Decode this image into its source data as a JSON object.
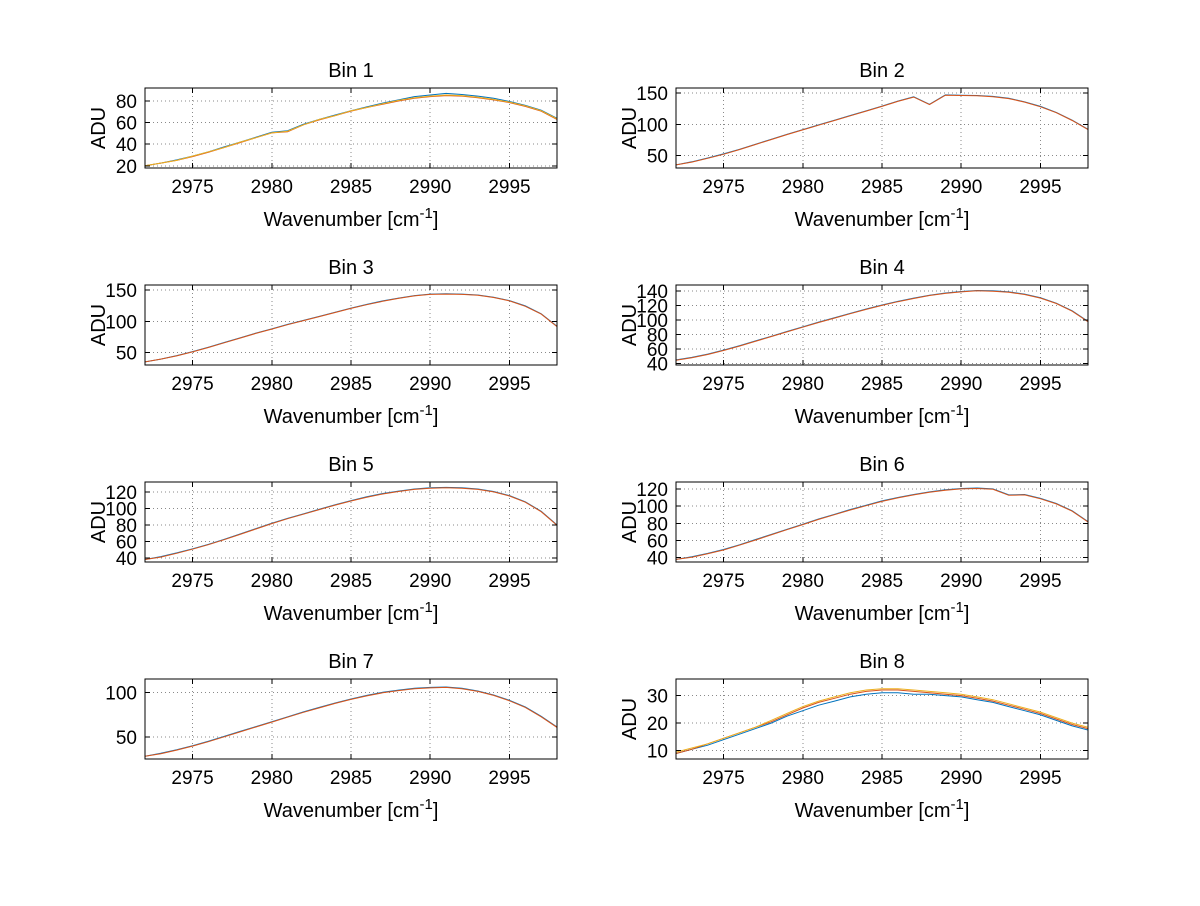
{
  "figure": {
    "background": "#ffffff"
  },
  "chart_data": [
    {
      "type": "line",
      "title": "Bin 1",
      "xlabel": "Wavenumber [cm^{-1}]",
      "ylabel": "ADU",
      "xlim": [
        2972,
        2998
      ],
      "xticks": [
        2975,
        2980,
        2985,
        2990,
        2995
      ],
      "ylim": [
        18,
        92
      ],
      "yticks": [
        20,
        40,
        60,
        80
      ],
      "grid": true,
      "legend": "none",
      "x": [
        2972,
        2973,
        2974,
        2975,
        2976,
        2977,
        2978,
        2979,
        2980,
        2981,
        2982,
        2983,
        2984,
        2985,
        2986,
        2987,
        2988,
        2989,
        2990,
        2991,
        2992,
        2993,
        2994,
        2995,
        2996,
        2997,
        2998
      ],
      "series": [
        {
          "name": "blue",
          "color": "#0072BD",
          "y": [
            20,
            22.5,
            25.5,
            29,
            33,
            37.5,
            42,
            46.5,
            51,
            52.5,
            58.5,
            63,
            67,
            71,
            74.5,
            78,
            81,
            84,
            85.5,
            87,
            86,
            84.5,
            82.5,
            79.5,
            76,
            71.5,
            64
          ]
        },
        {
          "name": "orange",
          "color": "#D95319",
          "y": [
            20,
            22.5,
            25,
            28.5,
            32.5,
            37,
            41.5,
            46,
            50.5,
            51.5,
            58,
            62.5,
            66.5,
            70.5,
            74,
            77,
            80,
            82.5,
            84,
            85,
            84.5,
            83,
            81,
            78.5,
            75,
            70.5,
            63
          ]
        },
        {
          "name": "yellow",
          "color": "#EDB120",
          "y": [
            20,
            22.5,
            25,
            29,
            33,
            37,
            42,
            46,
            50.5,
            52,
            58,
            63,
            66.5,
            71,
            74,
            77.5,
            80.5,
            83,
            84.5,
            85.5,
            85,
            83.5,
            81.5,
            79,
            75.5,
            71,
            63.5
          ]
        }
      ]
    },
    {
      "type": "line",
      "title": "Bin 2",
      "xlabel": "Wavenumber [cm^{-1}]",
      "ylabel": "ADU",
      "xlim": [
        2972,
        2998
      ],
      "xticks": [
        2975,
        2980,
        2985,
        2990,
        2995
      ],
      "ylim": [
        30,
        158
      ],
      "yticks": [
        50,
        100,
        150
      ],
      "grid": true,
      "legend": "none",
      "x": [
        2972,
        2973,
        2974,
        2975,
        2976,
        2977,
        2978,
        2979,
        2980,
        2981,
        2982,
        2983,
        2984,
        2985,
        2986,
        2987,
        2988,
        2989,
        2990,
        2991,
        2992,
        2993,
        2994,
        2995,
        2996,
        2997,
        2998
      ],
      "series": [
        {
          "name": "blue",
          "color": "#0072BD",
          "y": [
            35,
            40,
            46,
            52.5,
            60,
            68,
            76,
            84,
            91.5,
            99,
            106.5,
            114,
            121.5,
            129,
            137,
            144,
            132,
            147,
            146.5,
            146,
            144.5,
            141.5,
            136,
            128.5,
            119,
            106.5,
            92
          ]
        },
        {
          "name": "orange",
          "color": "#D95319",
          "y": [
            35,
            39.5,
            45.5,
            52,
            59.5,
            67.5,
            75.5,
            83.5,
            91,
            98.5,
            106,
            113.5,
            121,
            128.5,
            136.5,
            143.5,
            131.5,
            146.5,
            146,
            145.5,
            144,
            141,
            135.5,
            128,
            118.5,
            106,
            91.5
          ]
        }
      ]
    },
    {
      "type": "line",
      "title": "Bin 3",
      "xlabel": "Wavenumber [cm^{-1}]",
      "ylabel": "ADU",
      "xlim": [
        2972,
        2998
      ],
      "xticks": [
        2975,
        2980,
        2985,
        2990,
        2995
      ],
      "ylim": [
        30,
        158
      ],
      "yticks": [
        50,
        100,
        150
      ],
      "grid": true,
      "legend": "none",
      "x": [
        2972,
        2973,
        2974,
        2975,
        2976,
        2977,
        2978,
        2979,
        2980,
        2981,
        2982,
        2983,
        2984,
        2985,
        2986,
        2987,
        2988,
        2989,
        2990,
        2991,
        2992,
        2993,
        2994,
        2995,
        2996,
        2997,
        2998
      ],
      "series": [
        {
          "name": "blue",
          "color": "#0072BD",
          "y": [
            35,
            39.5,
            45,
            51.5,
            58.5,
            66,
            73.5,
            81,
            88,
            95,
            101.5,
            108,
            114.5,
            121,
            127,
            132.5,
            137,
            141,
            143.5,
            144,
            143.5,
            142,
            138.5,
            133,
            124.5,
            112,
            92
          ]
        },
        {
          "name": "orange",
          "color": "#D95319",
          "y": [
            35,
            39.5,
            44.5,
            51,
            58,
            65.5,
            73,
            80.5,
            87.5,
            94.5,
            101,
            107.5,
            114,
            120.5,
            126.5,
            132,
            136.5,
            140.5,
            143,
            143.5,
            143,
            141.5,
            138,
            132.5,
            124,
            111.5,
            91.5
          ]
        }
      ]
    },
    {
      "type": "line",
      "title": "Bin 4",
      "xlabel": "Wavenumber [cm^{-1}]",
      "ylabel": "ADU",
      "xlim": [
        2972,
        2998
      ],
      "xticks": [
        2975,
        2980,
        2985,
        2990,
        2995
      ],
      "ylim": [
        38,
        148
      ],
      "yticks": [
        40,
        60,
        80,
        100,
        120,
        140
      ],
      "grid": true,
      "legend": "none",
      "x": [
        2972,
        2973,
        2974,
        2975,
        2976,
        2977,
        2978,
        2979,
        2980,
        2981,
        2982,
        2983,
        2984,
        2985,
        2986,
        2987,
        2988,
        2989,
        2990,
        2991,
        2992,
        2993,
        2994,
        2995,
        2996,
        2997,
        2998
      ],
      "series": [
        {
          "name": "blue",
          "color": "#0072BD",
          "y": [
            45,
            48.5,
            53,
            58.5,
            64.5,
            71,
            77.5,
            84,
            90.5,
            97,
            103,
            109,
            115,
            120.5,
            125.5,
            130,
            134,
            137,
            139,
            140.5,
            140,
            138.5,
            135.5,
            130.5,
            123,
            112.5,
            98
          ]
        },
        {
          "name": "orange",
          "color": "#D95319",
          "y": [
            44.5,
            48,
            52.5,
            58,
            64,
            70.5,
            77,
            83.5,
            90,
            96.5,
            102.5,
            108.5,
            114.5,
            120,
            125,
            129.5,
            133.5,
            136.5,
            138.5,
            140,
            139.5,
            138,
            135,
            130,
            122.5,
            112,
            97.5
          ]
        }
      ]
    },
    {
      "type": "line",
      "title": "Bin 5",
      "xlabel": "Wavenumber [cm^{-1}]",
      "ylabel": "ADU",
      "xlim": [
        2972,
        2998
      ],
      "xticks": [
        2975,
        2980,
        2985,
        2990,
        2995
      ],
      "ylim": [
        35,
        132
      ],
      "yticks": [
        40,
        60,
        80,
        100,
        120
      ],
      "grid": true,
      "legend": "none",
      "x": [
        2972,
        2973,
        2974,
        2975,
        2976,
        2977,
        2978,
        2979,
        2980,
        2981,
        2982,
        2983,
        2984,
        2985,
        2986,
        2987,
        2988,
        2989,
        2990,
        2991,
        2992,
        2993,
        2994,
        2995,
        2996,
        2997,
        2998
      ],
      "series": [
        {
          "name": "blue",
          "color": "#0072BD",
          "y": [
            38,
            41.5,
            46,
            51,
            56.5,
            62.5,
            69,
            75.5,
            82,
            88,
            93.5,
            99,
            104.5,
            109.5,
            114,
            118,
            121,
            123.5,
            125,
            125.5,
            125,
            123.5,
            120.5,
            115.5,
            108,
            96.5,
            80
          ]
        },
        {
          "name": "orange",
          "color": "#D95319",
          "y": [
            38,
            41,
            45.5,
            50.5,
            56,
            62,
            68.5,
            75,
            81.5,
            87.5,
            93,
            98.5,
            104,
            109,
            113.5,
            117.5,
            120.5,
            123,
            124.5,
            125,
            124.5,
            123,
            120,
            115,
            107.5,
            96,
            79.5
          ]
        }
      ]
    },
    {
      "type": "line",
      "title": "Bin 6",
      "xlabel": "Wavenumber [cm^{-1}]",
      "ylabel": "ADU",
      "xlim": [
        2972,
        2998
      ],
      "xticks": [
        2975,
        2980,
        2985,
        2990,
        2995
      ],
      "ylim": [
        35,
        128
      ],
      "yticks": [
        40,
        60,
        80,
        100,
        120
      ],
      "grid": true,
      "legend": "none",
      "x": [
        2972,
        2973,
        2974,
        2975,
        2976,
        2977,
        2978,
        2979,
        2980,
        2981,
        2982,
        2983,
        2984,
        2985,
        2986,
        2987,
        2988,
        2989,
        2990,
        2991,
        2992,
        2993,
        2994,
        2995,
        2996,
        2997,
        2998
      ],
      "series": [
        {
          "name": "blue",
          "color": "#0072BD",
          "y": [
            38,
            41,
            45,
            49.5,
            55,
            61,
            67,
            73,
            79,
            85,
            90.5,
            96,
            101,
            106,
            110,
            113.5,
            116.5,
            119,
            120.5,
            121,
            120,
            113,
            113.5,
            109,
            103,
            94.5,
            82
          ]
        },
        {
          "name": "orange",
          "color": "#D95319",
          "y": [
            38,
            40.5,
            44.5,
            49,
            54.5,
            60.5,
            66.5,
            72.5,
            78.5,
            84.5,
            90,
            95.5,
            100.5,
            105.5,
            109.5,
            113,
            116,
            118.5,
            120,
            120.5,
            119.5,
            112.5,
            113,
            108.5,
            102.5,
            94,
            81.5
          ]
        }
      ]
    },
    {
      "type": "line",
      "title": "Bin 7",
      "xlabel": "Wavenumber [cm^{-1}]",
      "ylabel": "",
      "xlim": [
        2972,
        2998
      ],
      "xticks": [
        2975,
        2980,
        2985,
        2990,
        2995
      ],
      "ylim": [
        25,
        115
      ],
      "yticks": [
        50,
        100
      ],
      "grid": true,
      "legend": "none",
      "x": [
        2972,
        2973,
        2974,
        2975,
        2976,
        2977,
        2978,
        2979,
        2980,
        2981,
        2982,
        2983,
        2984,
        2985,
        2986,
        2987,
        2988,
        2989,
        2990,
        2991,
        2992,
        2993,
        2994,
        2995,
        2996,
        2997,
        2998
      ],
      "series": [
        {
          "name": "blue",
          "color": "#0072BD",
          "y": [
            28,
            31.5,
            35.5,
            40,
            45,
            50.5,
            56,
            61.5,
            67,
            72.5,
            78,
            83,
            88,
            92.5,
            96.5,
            100,
            102.5,
            104.5,
            105.5,
            106,
            104.5,
            101.5,
            97,
            91,
            83.5,
            73,
            61
          ]
        },
        {
          "name": "orange",
          "color": "#D95319",
          "y": [
            28,
            31,
            35,
            39.5,
            44.5,
            50,
            55.5,
            61,
            66.5,
            72,
            77.5,
            82.5,
            87.5,
            92,
            96,
            99.5,
            102,
            104,
            105,
            105.5,
            104,
            101,
            96.5,
            90.5,
            83,
            72.5,
            60.5
          ]
        }
      ]
    },
    {
      "type": "line",
      "title": "Bin 8",
      "xlabel": "Wavenumber [cm^{-1}]",
      "ylabel": "ADU",
      "xlim": [
        2972,
        2998
      ],
      "xticks": [
        2975,
        2980,
        2985,
        2990,
        2995
      ],
      "ylim": [
        7,
        36
      ],
      "yticks": [
        10,
        20,
        30
      ],
      "grid": true,
      "legend": "none",
      "x": [
        2972,
        2973,
        2974,
        2975,
        2976,
        2977,
        2978,
        2979,
        2980,
        2981,
        2982,
        2983,
        2984,
        2985,
        2986,
        2987,
        2988,
        2989,
        2990,
        2991,
        2992,
        2993,
        2994,
        2995,
        2996,
        2997,
        2998
      ],
      "series": [
        {
          "name": "blue",
          "color": "#0072BD",
          "y": [
            9,
            10.5,
            12,
            14,
            16,
            18,
            20,
            22.5,
            24.5,
            26.5,
            28,
            29.5,
            30.5,
            31,
            31,
            30.5,
            30.5,
            30,
            29.5,
            28.5,
            27.5,
            26,
            24.5,
            23,
            21,
            19,
            17.5
          ]
        },
        {
          "name": "orange",
          "color": "#D95319",
          "y": [
            9,
            10.5,
            12.5,
            14.5,
            16.5,
            18.5,
            20.5,
            23,
            25.5,
            27.5,
            29,
            30.5,
            31.5,
            32,
            32,
            31.5,
            31,
            30.5,
            30,
            29,
            28,
            26.5,
            25,
            23.5,
            21.5,
            19.5,
            18
          ]
        },
        {
          "name": "yellow",
          "color": "#EDB120",
          "y": [
            9.5,
            11,
            12.5,
            14.5,
            16.5,
            18.5,
            21,
            23.5,
            26,
            28,
            29.5,
            31,
            32,
            32.5,
            32.5,
            32,
            31.5,
            31,
            30.5,
            29.5,
            28.5,
            27,
            25.5,
            24,
            22,
            20,
            18.5
          ]
        }
      ]
    }
  ]
}
